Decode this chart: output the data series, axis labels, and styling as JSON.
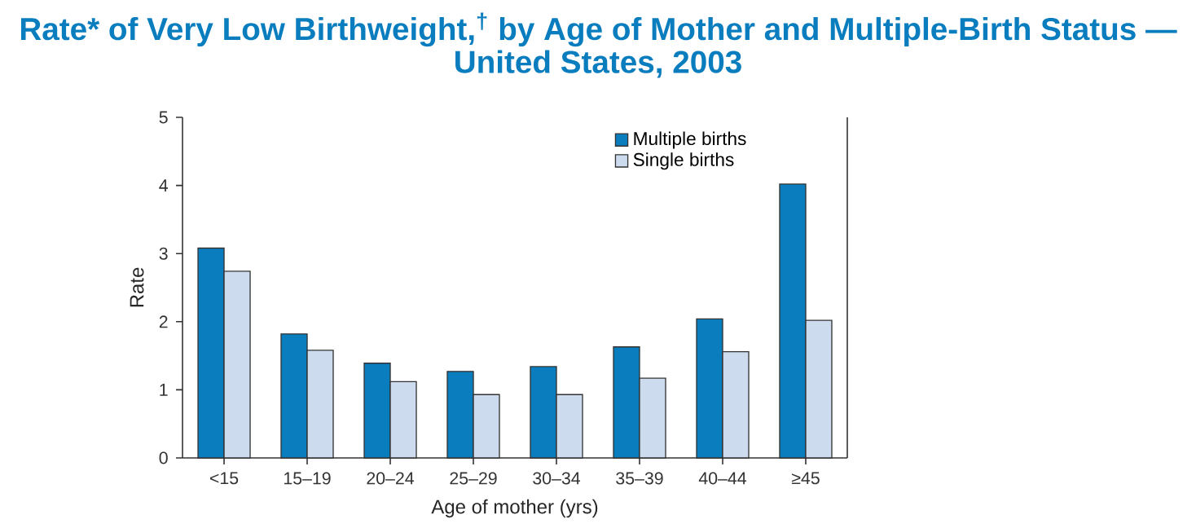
{
  "chart_data": {
    "type": "bar",
    "title": "Rate* of Very Low Birthweight,$^{†}$ by Age of Mother and Multiple-Birth Status —",
    "subtitle": "United States, 2003",
    "xlabel": "Age of mother (yrs)",
    "ylabel": "Rate",
    "categories": [
      "<15",
      "15–19",
      "20–24",
      "25–29",
      "30–34",
      "35–39",
      "40–44",
      "≥45"
    ],
    "series": [
      {
        "name": "Multiple births",
        "color": "#0a7dbf",
        "values": [
          3.08,
          1.82,
          1.39,
          1.27,
          1.34,
          1.63,
          2.04,
          4.02
        ]
      },
      {
        "name": "Single births",
        "color": "#ccdcee",
        "values": [
          2.74,
          1.58,
          1.12,
          0.93,
          0.93,
          1.17,
          1.56,
          2.02
        ]
      }
    ],
    "ylim": [
      0,
      5
    ],
    "yticks": [
      0,
      1,
      2,
      3,
      4,
      5
    ],
    "grid": false,
    "legend": "top right"
  }
}
